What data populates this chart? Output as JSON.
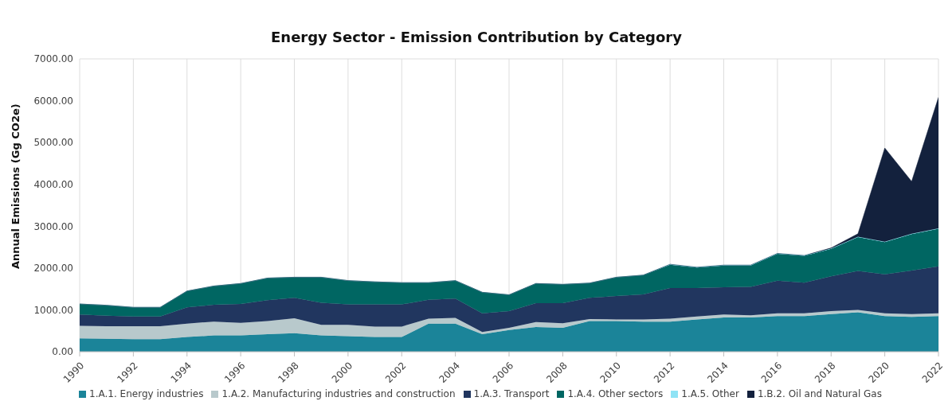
{
  "chart_data": {
    "type": "area",
    "stacked": true,
    "title": "Energy Sector - Emission Contribution by Category",
    "ylabel": "Annual Emissions (Gg CO2e)",
    "categories": [
      "1990",
      null,
      "1992",
      null,
      "1994",
      null,
      "1996",
      null,
      "1998",
      null,
      "2000",
      null,
      "2002",
      null,
      "2004",
      null,
      "2006",
      null,
      "2008",
      null,
      "2010",
      null,
      "2012",
      null,
      "2014",
      null,
      "2016",
      null,
      "2018",
      null,
      "2020",
      null,
      "2022"
    ],
    "series": [
      {
        "name": "1.A.1. Energy industries",
        "color": "#1b8499",
        "values": [
          320,
          310,
          300,
          300,
          350,
          390,
          390,
          420,
          440,
          390,
          370,
          350,
          350,
          670,
          670,
          420,
          520,
          590,
          570,
          730,
          730,
          720,
          720,
          770,
          820,
          820,
          850,
          850,
          900,
          940,
          850,
          830,
          850
        ]
      },
      {
        "name": "1.A.2. Manufacturing industries and construction",
        "color": "#b8c9cc",
        "values": [
          300,
          300,
          310,
          310,
          320,
          330,
          300,
          310,
          360,
          250,
          270,
          250,
          250,
          120,
          140,
          50,
          50,
          120,
          110,
          50,
          40,
          50,
          70,
          70,
          70,
          50,
          70,
          70,
          70,
          60,
          70,
          70,
          70
        ]
      },
      {
        "name": "1.A.3. Transport",
        "color": "#21365f",
        "values": [
          270,
          250,
          230,
          230,
          390,
          400,
          450,
          500,
          490,
          530,
          490,
          530,
          530,
          450,
          460,
          450,
          400,
          450,
          480,
          510,
          560,
          600,
          730,
          680,
          650,
          680,
          780,
          730,
          830,
          930,
          930,
          1040,
          1120
        ]
      },
      {
        "name": "1.A.4. Other sectors",
        "color": "#006662",
        "values": [
          250,
          250,
          220,
          220,
          390,
          450,
          490,
          530,
          490,
          610,
          570,
          540,
          520,
          410,
          430,
          500,
          390,
          470,
          450,
          350,
          450,
          460,
          560,
          490,
          520,
          510,
          640,
          640,
          660,
          810,
          770,
          870,
          900
        ]
      },
      {
        "name": "1.A.5. Other",
        "color": "#8fe3f5",
        "values": [
          0,
          0,
          0,
          0,
          0,
          0,
          0,
          0,
          0,
          0,
          0,
          0,
          0,
          0,
          0,
          0,
          0,
          0,
          0,
          0,
          0,
          0,
          10,
          10,
          10,
          10,
          10,
          10,
          10,
          10,
          10,
          10,
          10
        ]
      },
      {
        "name": "1.B.2. Oil and Natural Gas",
        "color": "#13213d",
        "values": [
          0,
          0,
          0,
          0,
          0,
          0,
          0,
          0,
          0,
          0,
          0,
          0,
          0,
          0,
          0,
          0,
          0,
          0,
          0,
          0,
          0,
          0,
          0,
          0,
          0,
          0,
          0,
          0,
          10,
          70,
          2240,
          1250,
          3130
        ]
      }
    ],
    "ylim": [
      0,
      7000
    ],
    "yticks": [
      {
        "value": 0,
        "label": "0.00"
      },
      {
        "value": 1000,
        "label": "1000.00"
      },
      {
        "value": 2000,
        "label": "2000.00"
      },
      {
        "value": 3000,
        "label": "3000.00"
      },
      {
        "value": 4000,
        "label": "4000.00"
      },
      {
        "value": 5000,
        "label": "5000.00"
      },
      {
        "value": 6000,
        "label": "6000.00"
      },
      {
        "value": 7000,
        "label": "7000.00"
      }
    ],
    "grid": true,
    "legend": "bottom"
  }
}
